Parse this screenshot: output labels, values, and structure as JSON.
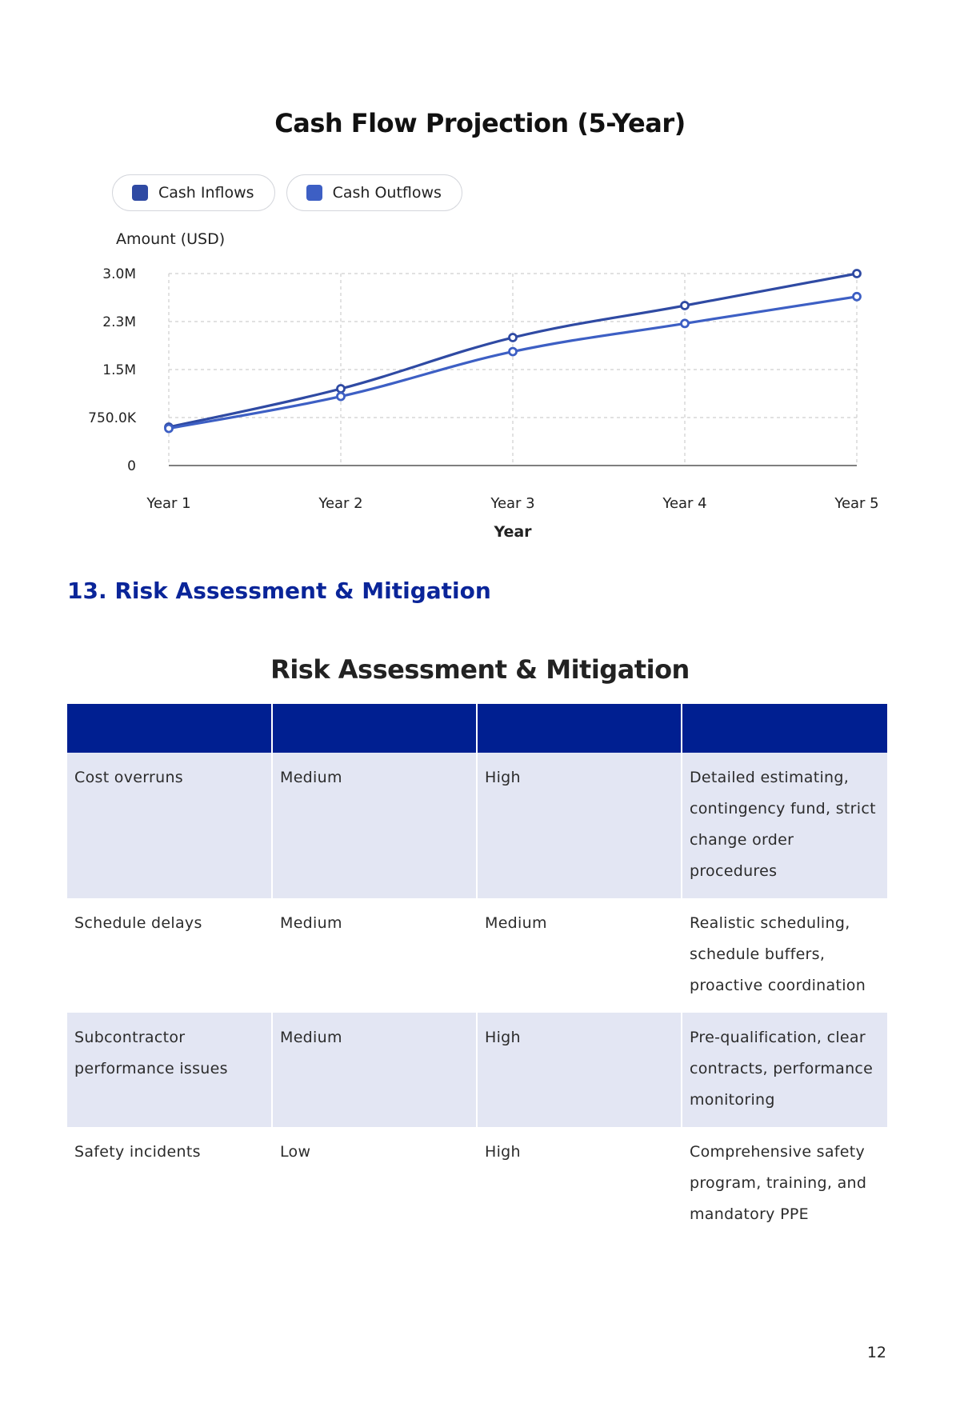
{
  "chart_data": {
    "type": "line",
    "title": "Cash Flow Projection (5-Year)",
    "ylabel": "Amount (USD)",
    "xlabel": "Year",
    "categories": [
      "Year 1",
      "Year 2",
      "Year 3",
      "Year 4",
      "Year 5"
    ],
    "y_ticks": [
      "0",
      "750.0K",
      "1.5M",
      "2.3M",
      "3.0M"
    ],
    "ylim": [
      0,
      3000000
    ],
    "grid": true,
    "legend_position": "top-left",
    "series": [
      {
        "name": "Cash Inflows",
        "color": "#2f4aa3",
        "values": [
          600000,
          1200000,
          2000000,
          2500000,
          3000000
        ]
      },
      {
        "name": "Cash Outflows",
        "color": "#3d5fc4",
        "values": [
          580000,
          1080000,
          1780000,
          2220000,
          2640000
        ]
      }
    ]
  },
  "section": {
    "heading": "13. Risk Assessment & Mitigation"
  },
  "risk_table": {
    "title": "Risk Assessment & Mitigation",
    "rows": [
      {
        "risk": "Cost overruns",
        "likelihood": "Medium",
        "impact": "High",
        "mitigation": "Detailed estimating, contingency fund, strict change order procedures"
      },
      {
        "risk": "Schedule delays",
        "likelihood": "Medium",
        "impact": "Medium",
        "mitigation": "Realistic scheduling, schedule buffers, proactive coordination"
      },
      {
        "risk": "Subcontractor performance issues",
        "likelihood": "Medium",
        "impact": "High",
        "mitigation": "Pre-qualification, clear contracts, performance monitoring"
      },
      {
        "risk": "Safety incidents",
        "likelihood": "Low",
        "impact": "High",
        "mitigation": "Comprehensive safety program, training, and mandatory PPE"
      }
    ]
  },
  "page_number": "12"
}
